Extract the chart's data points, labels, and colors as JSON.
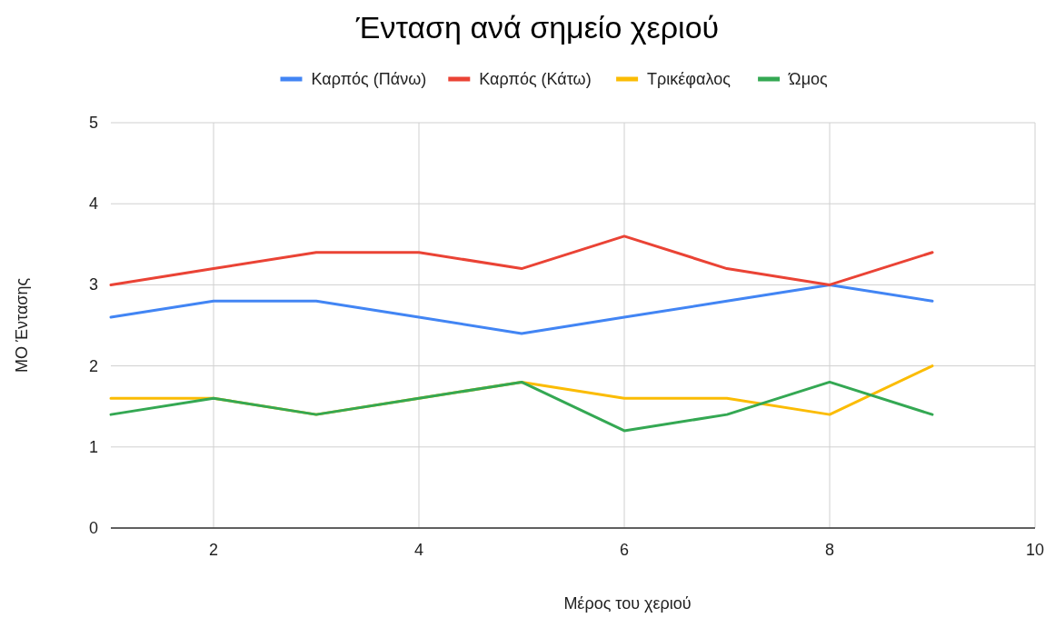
{
  "chart_data": {
    "type": "line",
    "title": "Ένταση ανά σημείο χεριού",
    "xlabel": "Μέρος του χεριού",
    "ylabel": "ΜΟ Έντασης",
    "x": [
      1,
      2,
      3,
      4,
      5,
      6,
      7,
      8,
      9
    ],
    "series": [
      {
        "name": "Καρπός (Πάνω)",
        "color": "#4285f4",
        "values": [
          2.6,
          2.8,
          2.8,
          2.6,
          2.4,
          2.6,
          2.8,
          3.0,
          2.8
        ]
      },
      {
        "name": "Καρπός (Κάτω)",
        "color": "#ea4335",
        "values": [
          3.0,
          3.2,
          3.4,
          3.4,
          3.2,
          3.6,
          3.2,
          3.0,
          3.4
        ]
      },
      {
        "name": "Τρικέφαλος",
        "color": "#fbbc04",
        "values": [
          1.6,
          1.6,
          1.4,
          1.6,
          1.8,
          1.6,
          1.6,
          1.4,
          2.0
        ]
      },
      {
        "name": "Ώμος",
        "color": "#34a853",
        "values": [
          1.4,
          1.6,
          1.4,
          1.6,
          1.8,
          1.2,
          1.4,
          1.8,
          1.4
        ]
      }
    ],
    "xlim": [
      1,
      10
    ],
    "xticks": [
      2,
      4,
      6,
      8,
      10
    ],
    "ylim": [
      0,
      5
    ],
    "yticks": [
      0,
      1,
      2,
      3,
      4,
      5
    ],
    "grid": true,
    "legend": "top",
    "marker": "none",
    "line_style": "solid"
  }
}
